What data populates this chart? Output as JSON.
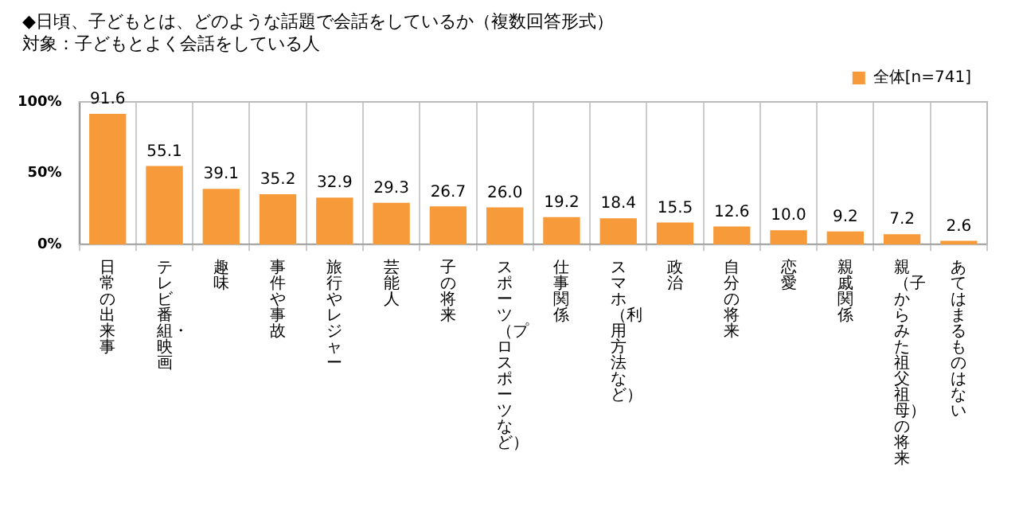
{
  "chart_data": {
    "type": "bar",
    "title": "◆日頃、子どもとは、どのような話題で会話をしているか（複数回答形式）",
    "subtitle": "対象：子どもとよく会話をしている人",
    "categories": [
      "日常の出来事",
      "テレビ番組・映画",
      "趣味",
      "事件や事故",
      "旅行やレジャー",
      "芸能人",
      "子の将来",
      "スポーツ（プロスポーツなど）",
      "仕事関係",
      "スマホ（利用方法など）",
      "政治",
      "自分の将来",
      "恋愛",
      "親戚関係",
      "親（子からみた祖父祖母）の将来",
      "あてはまるものはない"
    ],
    "series": [
      {
        "name": "全体[n=741]",
        "color": "#f79a3a",
        "values": [
          91.6,
          55.1,
          39.1,
          35.2,
          32.9,
          29.3,
          26.7,
          26.0,
          19.2,
          18.4,
          15.5,
          12.6,
          10.0,
          9.2,
          7.2,
          2.6
        ],
        "value_labels": [
          "91.6",
          "55.1",
          "39.1",
          "35.2",
          "32.9",
          "29.3",
          "26.7",
          "26.0",
          "19.2",
          "18.4",
          "15.5",
          "12.6",
          "10.0",
          "9.2",
          "7.2",
          "2.6"
        ]
      }
    ],
    "ylim": [
      0,
      100
    ],
    "yticks": [
      {
        "value": 0,
        "label": "0%"
      },
      {
        "value": 50,
        "label": "50%"
      },
      {
        "value": 100,
        "label": "100%"
      }
    ],
    "grid": "x",
    "legend": "top right"
  }
}
